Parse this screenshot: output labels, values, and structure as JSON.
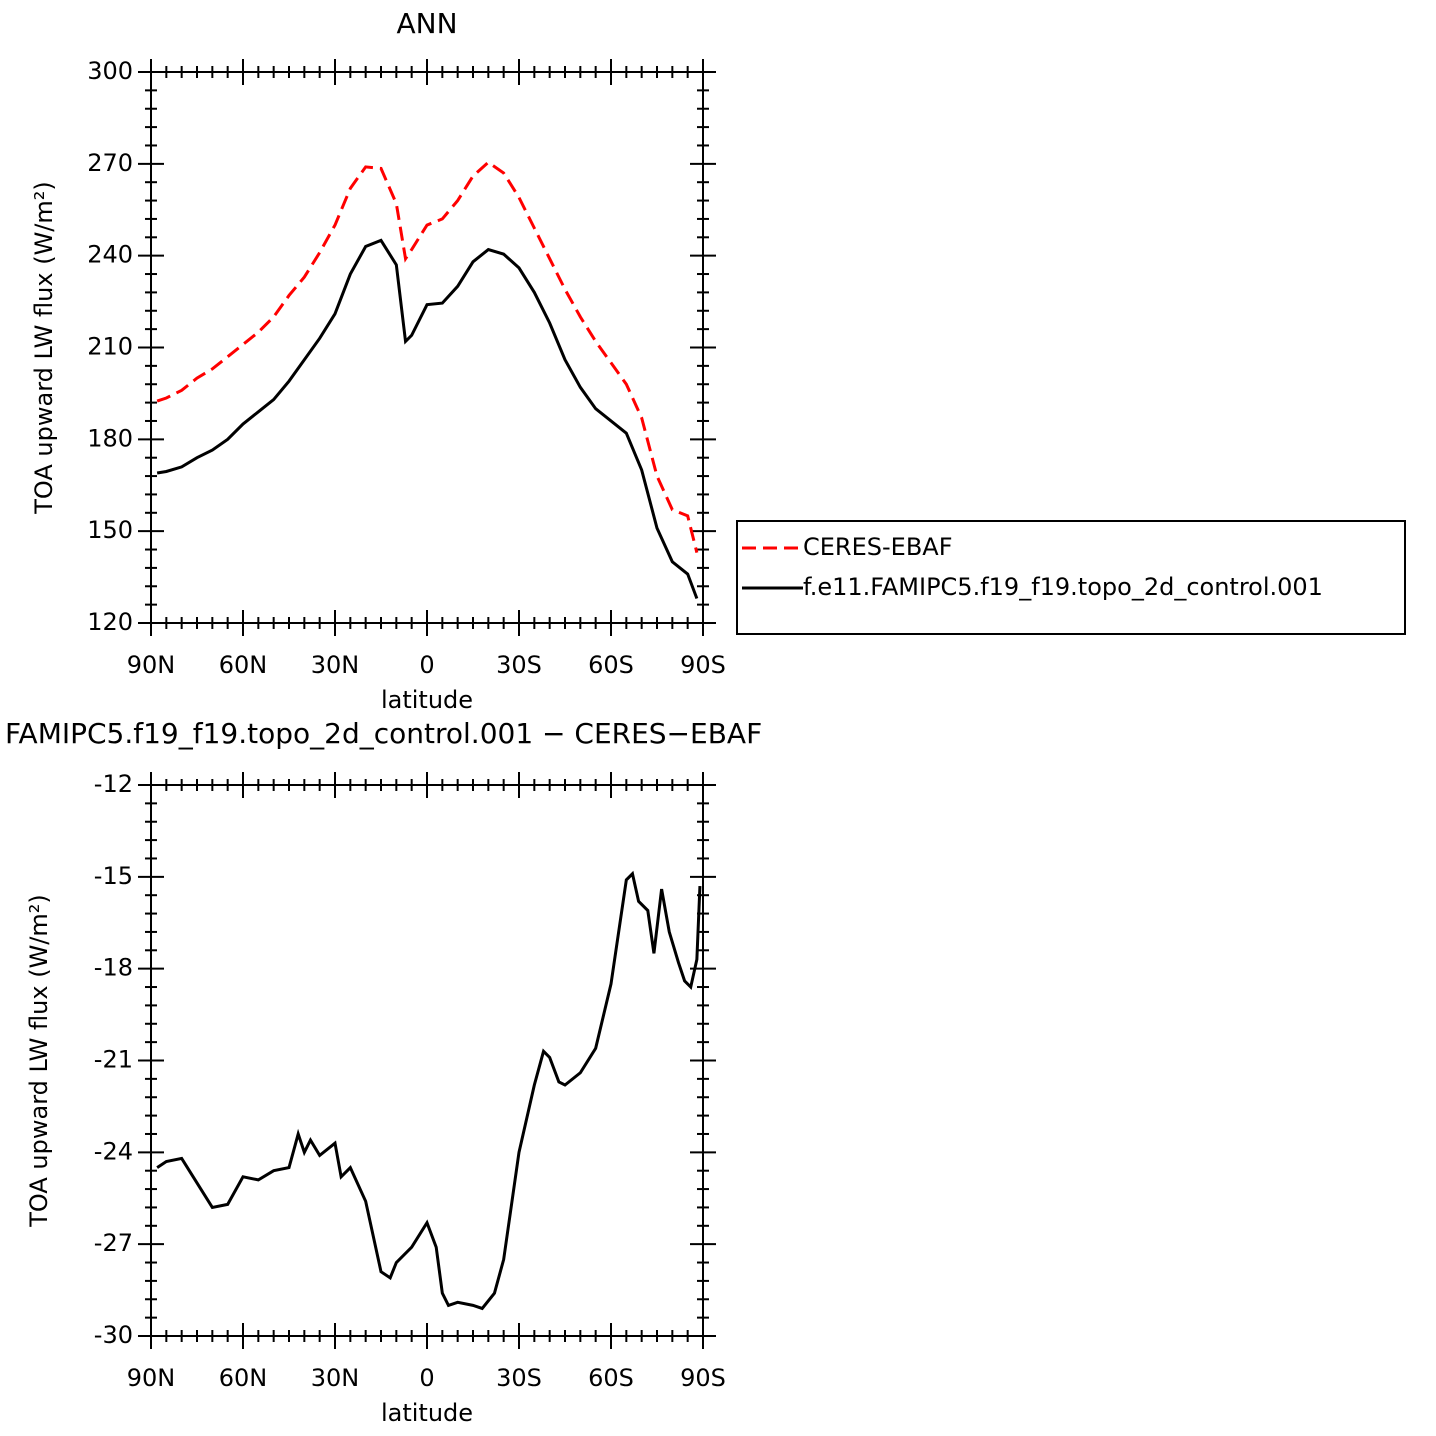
{
  "chart_data": [
    {
      "type": "line",
      "title": "ANN",
      "xlabel": "latitude",
      "ylabel": "TOA upward LW flux (W/m²)",
      "xlim": [
        90,
        -90
      ],
      "xticks": [
        {
          "value": 90,
          "label": "90N"
        },
        {
          "value": 60,
          "label": "60N"
        },
        {
          "value": 30,
          "label": "30N"
        },
        0,
        {
          "value": -30,
          "label": "30S"
        },
        {
          "value": -60,
          "label": "60S"
        },
        {
          "value": -90,
          "label": "90S"
        }
      ],
      "ylim": [
        120,
        300
      ],
      "yticks": [
        120,
        150,
        180,
        210,
        240,
        270,
        300
      ],
      "legend": "right",
      "x": [
        88,
        85,
        80,
        75,
        70,
        65,
        60,
        55,
        50,
        45,
        40,
        35,
        30,
        25,
        20,
        15,
        10,
        7,
        5,
        0,
        -5,
        -10,
        -15,
        -20,
        -25,
        -30,
        -35,
        -40,
        -45,
        -50,
        -55,
        -60,
        -65,
        -70,
        -75,
        -80,
        -85,
        -88
      ],
      "series": [
        {
          "name": "CERES-EBAF",
          "color": "#ff0000",
          "linestyle": "dashed",
          "values": [
            192.5,
            193.5,
            196,
            200,
            203,
            207,
            211,
            215,
            220,
            227,
            233,
            241,
            250,
            262,
            269,
            268.5,
            257,
            239,
            242,
            250,
            252,
            258,
            266,
            270.5,
            267,
            259,
            249,
            239,
            229,
            220,
            212,
            205,
            198,
            187,
            168,
            157,
            155,
            143
          ]
        },
        {
          "name": "f.e11.FAMIPC5.f19_f19.topo_2d_control.001",
          "color": "#000000",
          "linestyle": "solid",
          "values": [
            169,
            169.5,
            171,
            174,
            176.5,
            180,
            185,
            189,
            193,
            199,
            206,
            213,
            221,
            234,
            243,
            245,
            237,
            212,
            214,
            224,
            224.5,
            230,
            238,
            242,
            240.5,
            236,
            228,
            218,
            206,
            197,
            190,
            186,
            182,
            170,
            151,
            140,
            136,
            128
          ]
        }
      ]
    },
    {
      "type": "line",
      "title": "FAMIPC5.f19_f19.topo_2d_control.001 − CERES−EBAF",
      "xlabel": "latitude",
      "ylabel": "TOA upward LW flux (W/m²)",
      "xlim": [
        90,
        -90
      ],
      "xticks": [
        {
          "value": 90,
          "label": "90N"
        },
        {
          "value": 60,
          "label": "60N"
        },
        {
          "value": 30,
          "label": "30N"
        },
        0,
        {
          "value": -30,
          "label": "30S"
        },
        {
          "value": -60,
          "label": "60S"
        },
        {
          "value": -90,
          "label": "90S"
        }
      ],
      "ylim": [
        -30,
        -12
      ],
      "yticks": [
        -30,
        -27,
        -24,
        -21,
        -18,
        -15,
        -12
      ],
      "x": [
        88,
        85,
        80,
        75,
        70,
        65,
        60,
        55,
        50,
        45,
        42,
        40,
        38,
        35,
        30,
        28,
        25,
        20,
        15,
        12,
        10,
        5,
        0,
        -3,
        -5,
        -7,
        -10,
        -15,
        -18,
        -22,
        -25,
        -28,
        -30,
        -35,
        -38,
        -40,
        -43,
        -45,
        -50,
        -55,
        -60,
        -65,
        -67,
        -69,
        -72,
        -74,
        -76.5,
        -79,
        -82,
        -84,
        -86,
        -88,
        -89
      ],
      "series": [
        {
          "color": "#000000",
          "linestyle": "solid",
          "values": [
            -24.5,
            -24.3,
            -24.2,
            -25.0,
            -25.8,
            -25.7,
            -24.8,
            -24.9,
            -24.6,
            -24.5,
            -23.4,
            -24.0,
            -23.6,
            -24.1,
            -23.7,
            -24.8,
            -24.5,
            -25.6,
            -27.9,
            -28.1,
            -27.6,
            -27.1,
            -26.3,
            -27.1,
            -28.6,
            -29.0,
            -28.9,
            -29.0,
            -29.1,
            -28.6,
            -27.5,
            -25.4,
            -24.0,
            -21.8,
            -20.7,
            -20.9,
            -21.7,
            -21.8,
            -21.4,
            -20.6,
            -18.5,
            -15.1,
            -14.9,
            -15.8,
            -16.1,
            -17.5,
            -15.4,
            -16.8,
            -17.8,
            -18.4,
            -18.6,
            -17.7,
            -15.3
          ]
        }
      ]
    }
  ]
}
